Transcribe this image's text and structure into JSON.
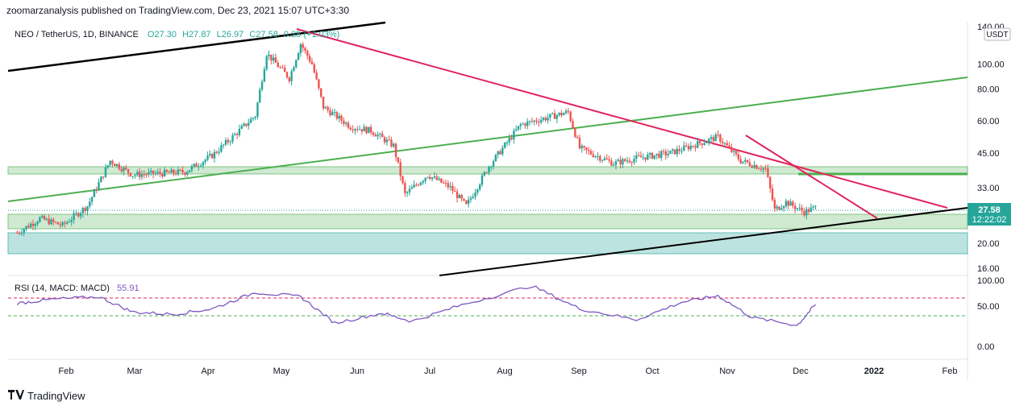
{
  "header": {
    "published_line": "zoomarzanalysis published on TradingView.com, Dec 23, 2021 15:07 UTC+3:30"
  },
  "legend": {
    "symbol": "NEO / TetherUS, 1D, BINANCE",
    "open": "O27.30",
    "high": "H27.87",
    "low": "L26.97",
    "close": "C27.58",
    "change": "0.28 (+1.03%)"
  },
  "price_axis": {
    "currency": "USDT",
    "ticks": [
      "140.00",
      "100.00",
      "80.00",
      "60.00",
      "45.00",
      "33.00",
      "27.58",
      "20.00",
      "16.00"
    ],
    "last_price": "27.58",
    "countdown": "12:22:02"
  },
  "rsi_panel": {
    "label": "RSI (14, MACD: MACD)",
    "value": "55.91",
    "ticks": [
      "100.00",
      "50.00",
      "0.00"
    ],
    "overbought_color": "#e0245e",
    "oversold_color": "#4caf50",
    "line_color": "#7e57c2"
  },
  "time_axis": {
    "labels": [
      "Feb",
      "Mar",
      "Apr",
      "May",
      "Jun",
      "Jul",
      "Aug",
      "Sep",
      "Oct",
      "Nov",
      "Dec",
      "2022",
      "Feb"
    ]
  },
  "footer": {
    "brand": "TradingView",
    "logo_icon": "tradingview-logo-icon"
  },
  "colors": {
    "up_candle": "#26a69a",
    "down_candle": "#ef5350",
    "resistance_line": "#e0245e",
    "channel_green": "#4caf50",
    "channel_black": "#000000",
    "zone_green": "#c8e6c9",
    "zone_teal": "#b2dfdb"
  },
  "chart_data": {
    "type": "candlestick",
    "title": "NEO / TetherUS, 1D, BINANCE",
    "xlabel": "",
    "ylabel": "",
    "y_scale": "log",
    "ylim": [
      15,
      145
    ],
    "x_range": [
      "2021-01-01",
      "2022-02-28"
    ],
    "close_path": [
      [
        "2021-01-05",
        22.0
      ],
      [
        "2021-01-15",
        25.0
      ],
      [
        "2021-01-25",
        23.5
      ],
      [
        "2021-02-05",
        28.0
      ],
      [
        "2021-02-15",
        42.0
      ],
      [
        "2021-02-25",
        37.0
      ],
      [
        "2021-03-10",
        37.5
      ],
      [
        "2021-03-20",
        38.0
      ],
      [
        "2021-04-01",
        44.0
      ],
      [
        "2021-04-10",
        52.0
      ],
      [
        "2021-04-20",
        63.0
      ],
      [
        "2021-04-25",
        110.0
      ],
      [
        "2021-05-05",
        88.0
      ],
      [
        "2021-05-10",
        120.0
      ],
      [
        "2021-05-15",
        100.0
      ],
      [
        "2021-05-20",
        68.0
      ],
      [
        "2021-06-01",
        57.0
      ],
      [
        "2021-06-10",
        55.0
      ],
      [
        "2021-06-20",
        48.0
      ],
      [
        "2021-06-25",
        31.0
      ],
      [
        "2021-07-05",
        37.0
      ],
      [
        "2021-07-15",
        33.0
      ],
      [
        "2021-07-22",
        28.0
      ],
      [
        "2021-08-01",
        40.0
      ],
      [
        "2021-08-15",
        58.0
      ],
      [
        "2021-09-05",
        65.0
      ],
      [
        "2021-09-10",
        47.0
      ],
      [
        "2021-09-25",
        41.0
      ],
      [
        "2021-10-05",
        43.0
      ],
      [
        "2021-10-20",
        45.0
      ],
      [
        "2021-11-10",
        52.0
      ],
      [
        "2021-11-20",
        42.0
      ],
      [
        "2021-12-01",
        39.0
      ],
      [
        "2021-12-05",
        27.0
      ],
      [
        "2021-12-10",
        29.0
      ],
      [
        "2021-12-18",
        26.5
      ],
      [
        "2021-12-23",
        27.58
      ]
    ],
    "rsi_path": [
      [
        "2021-01-05",
        58
      ],
      [
        "2021-01-20",
        65
      ],
      [
        "2021-02-10",
        70
      ],
      [
        "2021-02-25",
        42
      ],
      [
        "2021-03-15",
        38
      ],
      [
        "2021-04-01",
        48
      ],
      [
        "2021-04-20",
        78
      ],
      [
        "2021-05-10",
        70
      ],
      [
        "2021-05-25",
        22
      ],
      [
        "2021-06-15",
        40
      ],
      [
        "2021-06-28",
        25
      ],
      [
        "2021-07-20",
        55
      ],
      [
        "2021-08-20",
        90
      ],
      [
        "2021-09-10",
        48
      ],
      [
        "2021-10-05",
        28
      ],
      [
        "2021-10-25",
        60
      ],
      [
        "2021-11-10",
        72
      ],
      [
        "2021-11-25",
        32
      ],
      [
        "2021-12-15",
        18
      ],
      [
        "2021-12-23",
        55.91
      ]
    ],
    "rsi_levels": [
      70,
      30
    ]
  }
}
